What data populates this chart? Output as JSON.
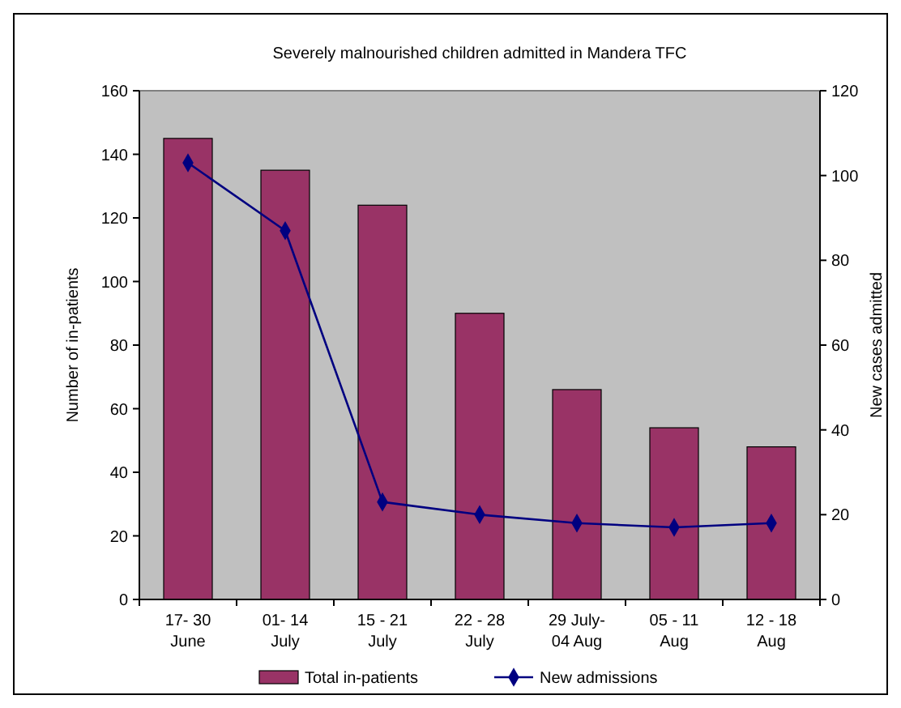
{
  "chart_data": {
    "type": "bar",
    "title": "Severely malnourished children admitted in Mandera TFC",
    "ylabel": "Number of in-patients",
    "y2label": "New cases admitted",
    "categories": [
      "17- 30\nJune",
      "01- 14\nJuly",
      "15 - 21\nJuly",
      "22 - 28\nJuly",
      "29 July-\n04 Aug",
      "05 - 11\nAug",
      "12 - 18\nAug"
    ],
    "series": [
      {
        "name": "Total in-patients",
        "color": "#993366",
        "values": [
          145,
          135,
          124,
          90,
          66,
          54,
          48
        ]
      },
      {
        "name": "New admissions",
        "type": "line",
        "axis": "y2",
        "color": "#000080",
        "marker": "diamond",
        "values": [
          103,
          87,
          23,
          20,
          18,
          17,
          18
        ]
      }
    ],
    "ylim": [
      0,
      160
    ],
    "yticks": [
      0,
      20,
      40,
      60,
      80,
      100,
      120,
      140,
      160
    ],
    "y2lim": [
      0,
      120
    ],
    "y2ticks": [
      0,
      20,
      40,
      60,
      80,
      100,
      120
    ],
    "grid": false,
    "legend": "bottom"
  }
}
